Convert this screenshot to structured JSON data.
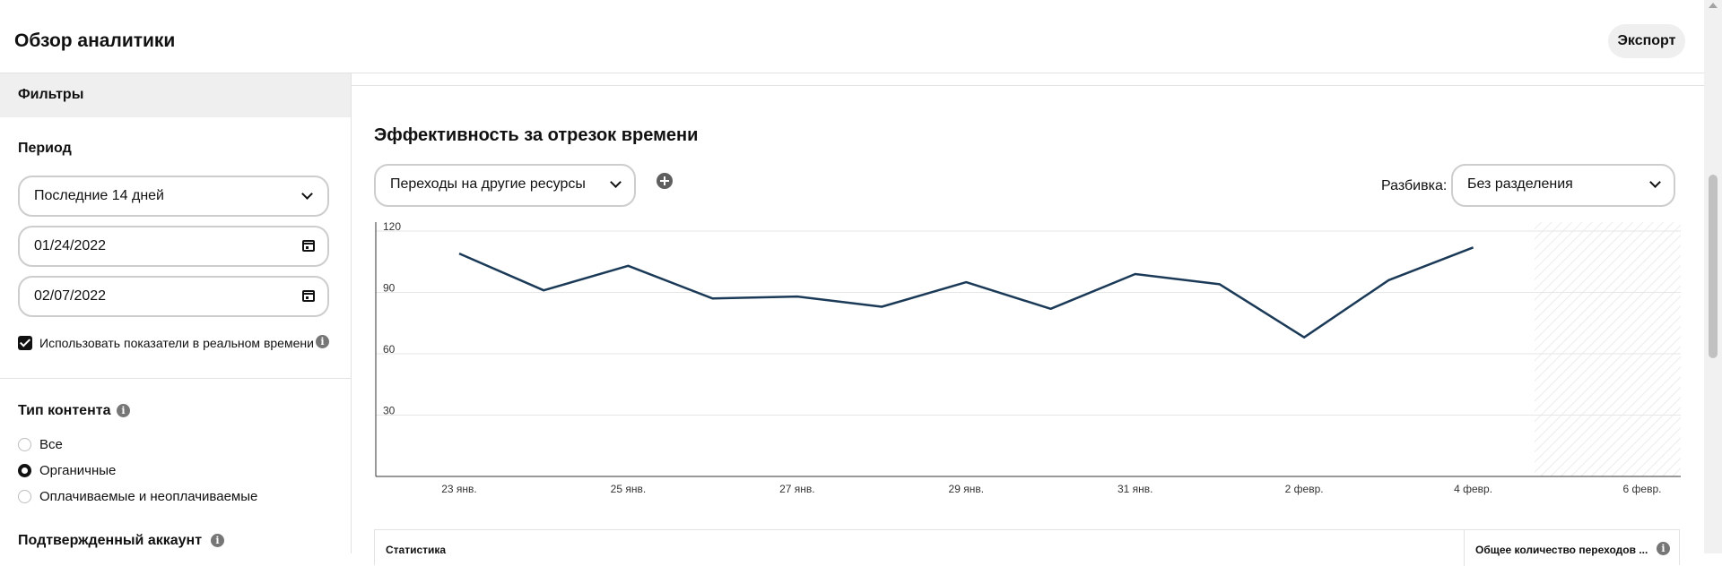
{
  "header": {
    "title": "Обзор аналитики",
    "export_label": "Экспорт"
  },
  "sidebar": {
    "filters_title": "Фильтры",
    "period": {
      "label": "Период",
      "range_value": "Последние 14 дней",
      "start_date": "01/24/2022",
      "end_date": "02/07/2022",
      "realtime_label": "Использовать показатели в реальном времени",
      "realtime_checked": true
    },
    "content_type": {
      "label": "Тип контента",
      "options": [
        "Все",
        "Органичные",
        "Оплачиваемые и неоплачиваемые"
      ],
      "selected": "Органичные"
    },
    "verified_account_label": "Подтвержденный аккаунт"
  },
  "main": {
    "title": "Эффективность за отрезок времени",
    "metric_value": "Переходы на другие ресурсы",
    "split_label": "Разбивка:",
    "split_value": "Без разделения",
    "table": {
      "col_left": "Статистика",
      "col_right": "Общее количество переходов ..."
    }
  },
  "icons": {
    "add": "plus-circle-icon",
    "info": "info-icon",
    "calendar": "calendar-icon",
    "chevron": "chevron-down-icon"
  },
  "colors": {
    "line": "#1b3a57",
    "checkbox": "#111111"
  },
  "chart_data": {
    "type": "line",
    "x_tick_labels": [
      "23 янв.",
      "25 янв.",
      "27 янв.",
      "29 янв.",
      "31 янв.",
      "2 февр.",
      "4 февр.",
      "6 февр."
    ],
    "y_tick_labels": [
      "120",
      "90",
      "60",
      "30"
    ],
    "ylim": [
      0,
      120
    ],
    "x": [
      "23 янв.",
      "24 янв.",
      "25 янв.",
      "26 янв.",
      "27 янв.",
      "28 янв.",
      "29 янв.",
      "30 янв.",
      "31 янв.",
      "1 февр.",
      "2 февр.",
      "3 февр.",
      "4 февр."
    ],
    "series": [
      {
        "values": [
          109,
          91,
          103,
          87,
          88,
          83,
          95,
          82,
          99,
          94,
          68,
          96,
          112
        ]
      }
    ],
    "x_range": [
      "23 янв.",
      "6 февр."
    ],
    "grid": true,
    "hatched_future_region": [
      "5 февр.",
      "6 февр."
    ]
  }
}
